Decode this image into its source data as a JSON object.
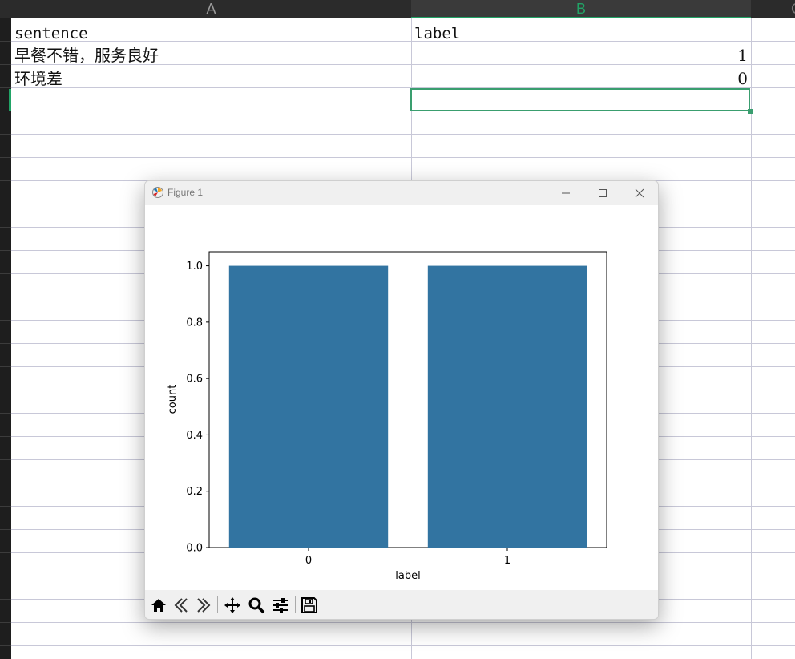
{
  "spreadsheet": {
    "columns": [
      "A",
      "B"
    ],
    "active_column": "B",
    "rows": [
      {
        "sentence": "sentence",
        "label": "label"
      },
      {
        "sentence": "早餐不错，服务良好",
        "label": "1"
      },
      {
        "sentence": "环境差",
        "label": "0"
      }
    ]
  },
  "figure_window": {
    "title": "Figure 1"
  },
  "chart_data": {
    "type": "bar",
    "categories": [
      "0",
      "1"
    ],
    "values": [
      1.0,
      1.0
    ],
    "xlabel": "label",
    "ylabel": "count",
    "ylim": [
      0,
      1.05
    ],
    "yticks": [
      "0.0",
      "0.2",
      "0.4",
      "0.6",
      "0.8",
      "1.0"
    ],
    "bar_color": "#3274a1",
    "grid": false
  },
  "toolbar": {
    "icons": [
      "home-icon",
      "back-icon",
      "forward-icon",
      "pan-icon",
      "zoom-icon",
      "configure-subplots-icon",
      "save-icon"
    ]
  }
}
